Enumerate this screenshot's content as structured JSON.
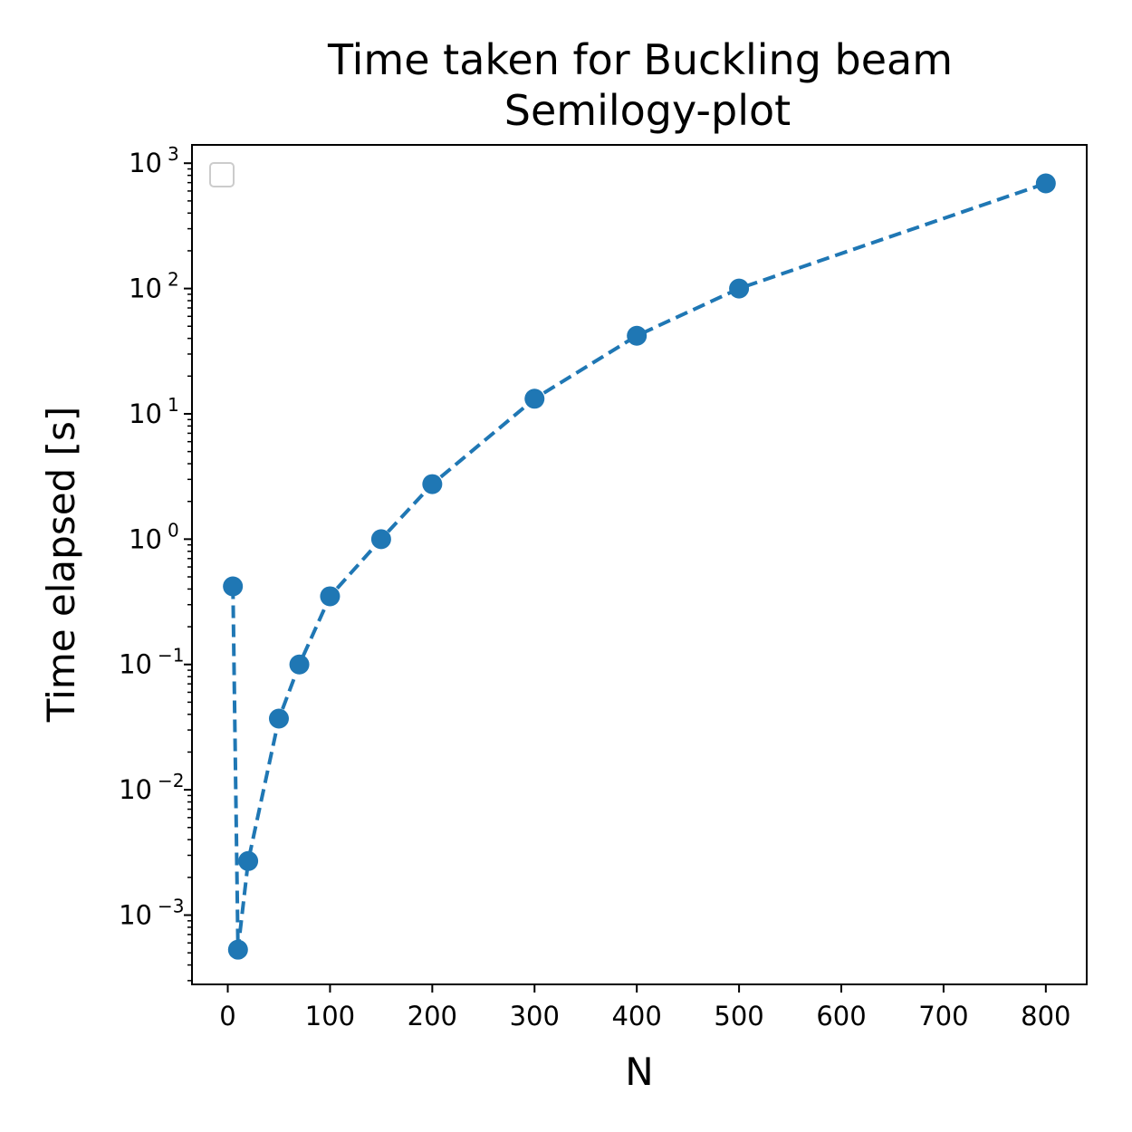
{
  "chart_data": {
    "type": "line",
    "title": "Time taken for Buckling beam",
    "subtitle": "Semilogy-plot",
    "xlabel": "N",
    "ylabel": "Time elapsed [s]",
    "xlim": [
      -35,
      840
    ],
    "ylim": [
      0.00028,
      1400
    ],
    "yscale": "log",
    "grid": false,
    "legend": "top-left",
    "x_ticks": [
      "0",
      "100",
      "200",
      "300",
      "400",
      "500",
      "600",
      "700",
      "800"
    ],
    "y_ticks": [
      {
        "base": "10",
        "exp": "−3",
        "value": 0.001
      },
      {
        "base": "10",
        "exp": "−2",
        "value": 0.01
      },
      {
        "base": "10",
        "exp": "−1",
        "value": 0.1
      },
      {
        "base": "10",
        "exp": "0",
        "value": 1
      },
      {
        "base": "10",
        "exp": "1",
        "value": 10
      },
      {
        "base": "10",
        "exp": "2",
        "value": 100
      },
      {
        "base": "10",
        "exp": "3",
        "value": 1000
      }
    ],
    "series": [
      {
        "color": "#1f77b4",
        "linestyle": "dashed",
        "marker": "circle",
        "x": [
          5,
          10,
          20,
          50,
          70,
          100,
          150,
          200,
          300,
          400,
          500,
          800
        ],
        "y": [
          0.42,
          0.00053,
          0.0027,
          0.037,
          0.1,
          0.35,
          1.0,
          2.75,
          13.2,
          42,
          100,
          690
        ]
      }
    ]
  }
}
